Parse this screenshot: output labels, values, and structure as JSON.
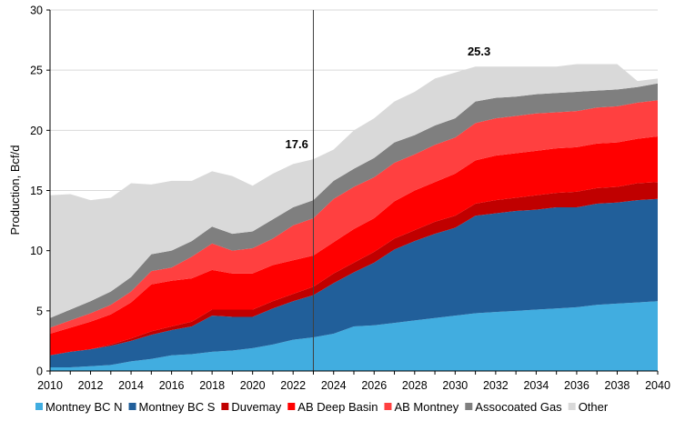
{
  "chart_data": {
    "type": "area",
    "stacked": true,
    "title": "",
    "xlabel": "",
    "ylabel": "Production, Bcf/d",
    "xlim": [
      2010,
      2040
    ],
    "ylim": [
      0,
      30
    ],
    "y_ticks": [
      0,
      5,
      10,
      15,
      20,
      25,
      30
    ],
    "x_ticks": [
      2010,
      2012,
      2014,
      2016,
      2018,
      2020,
      2022,
      2024,
      2026,
      2028,
      2030,
      2032,
      2034,
      2036,
      2038,
      2040
    ],
    "grid": "horizontal",
    "legend_position": "bottom",
    "x": [
      2010,
      2011,
      2012,
      2013,
      2014,
      2015,
      2016,
      2017,
      2018,
      2019,
      2020,
      2021,
      2022,
      2023,
      2024,
      2025,
      2026,
      2027,
      2028,
      2029,
      2030,
      2031,
      2032,
      2033,
      2034,
      2035,
      2036,
      2037,
      2038,
      2039,
      2040
    ],
    "series": [
      {
        "name": "Montney BC N",
        "color": "#41ADE0",
        "values": [
          0.3,
          0.3,
          0.4,
          0.5,
          0.8,
          1.0,
          1.3,
          1.4,
          1.6,
          1.7,
          1.9,
          2.2,
          2.6,
          2.8,
          3.1,
          3.7,
          3.8,
          4.0,
          4.2,
          4.4,
          4.6,
          4.8,
          4.9,
          5.0,
          5.1,
          5.2,
          5.3,
          5.5,
          5.6,
          5.7,
          5.8
        ]
      },
      {
        "name": "Montney BC S",
        "color": "#215F9A",
        "values": [
          1.0,
          1.3,
          1.4,
          1.6,
          1.7,
          2.0,
          2.1,
          2.3,
          3.0,
          2.8,
          2.6,
          3.0,
          3.2,
          3.5,
          4.2,
          4.5,
          5.2,
          6.1,
          6.6,
          7.0,
          7.3,
          8.1,
          8.2,
          8.3,
          8.3,
          8.4,
          8.3,
          8.4,
          8.4,
          8.5,
          8.5
        ]
      },
      {
        "name": "Duvemay",
        "color": "#C00000",
        "values": [
          0.0,
          0.0,
          0.0,
          0.1,
          0.2,
          0.3,
          0.3,
          0.4,
          0.5,
          0.6,
          0.6,
          0.6,
          0.6,
          0.7,
          0.8,
          0.8,
          0.9,
          0.9,
          0.9,
          1.0,
          1.0,
          1.0,
          1.1,
          1.1,
          1.2,
          1.2,
          1.3,
          1.3,
          1.3,
          1.4,
          1.4
        ]
      },
      {
        "name": "AB Deep Basin",
        "color": "#FF0000",
        "values": [
          1.8,
          2.0,
          2.3,
          2.5,
          3.0,
          3.9,
          3.8,
          3.6,
          3.3,
          3.0,
          3.0,
          3.0,
          2.8,
          2.6,
          2.6,
          2.8,
          2.8,
          3.1,
          3.3,
          3.3,
          3.5,
          3.6,
          3.7,
          3.7,
          3.7,
          3.7,
          3.7,
          3.7,
          3.7,
          3.7,
          3.8
        ]
      },
      {
        "name": "AB Montney",
        "color": "#FF4040",
        "values": [
          0.5,
          0.6,
          0.7,
          0.8,
          0.9,
          1.1,
          1.1,
          1.8,
          2.2,
          1.9,
          2.1,
          2.2,
          2.9,
          3.1,
          3.6,
          3.5,
          3.4,
          3.2,
          3.0,
          3.1,
          3.0,
          3.1,
          3.1,
          3.1,
          3.1,
          3.0,
          3.0,
          3.0,
          3.0,
          3.0,
          3.0
        ]
      },
      {
        "name": "Assocoated Gas",
        "color": "#7F7F7F",
        "values": [
          0.8,
          0.9,
          1.0,
          1.1,
          1.2,
          1.4,
          1.4,
          1.3,
          1.4,
          1.4,
          1.4,
          1.6,
          1.5,
          1.5,
          1.5,
          1.5,
          1.6,
          1.7,
          1.6,
          1.6,
          1.6,
          1.8,
          1.7,
          1.6,
          1.6,
          1.6,
          1.6,
          1.4,
          1.4,
          1.3,
          1.4
        ]
      },
      {
        "name": "Other",
        "color": "#D9D9D9",
        "values": [
          10.2,
          9.6,
          8.4,
          7.8,
          7.8,
          5.8,
          5.8,
          5.0,
          4.6,
          4.8,
          3.8,
          3.8,
          3.6,
          3.4,
          2.6,
          3.2,
          3.3,
          3.4,
          3.6,
          3.9,
          3.8,
          2.9,
          2.6,
          2.5,
          2.3,
          2.2,
          2.3,
          2.2,
          2.1,
          0.5,
          0.4
        ]
      }
    ],
    "annotations": [
      {
        "text": "17.6",
        "x": 2022,
        "y": 17.6
      },
      {
        "text": "25.3",
        "x": 2031,
        "y": 25.3
      }
    ],
    "vertical_marker": {
      "x": 2023
    }
  }
}
